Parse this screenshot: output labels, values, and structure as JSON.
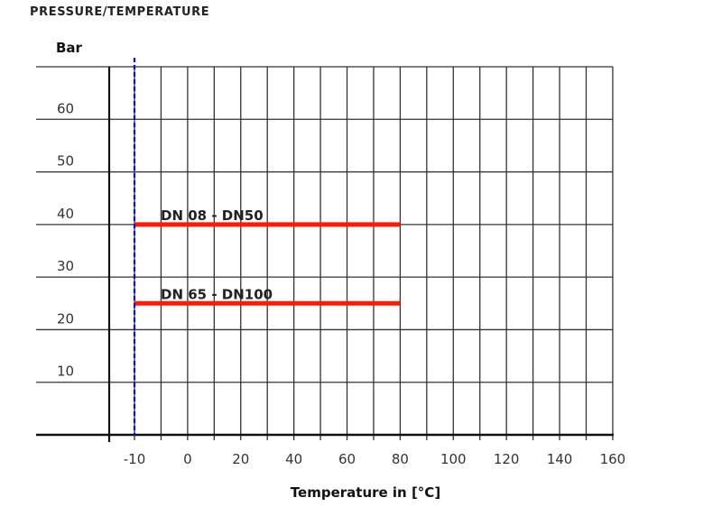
{
  "chart_data": {
    "type": "line",
    "title": "PRESSURE/TEMPERATURE",
    "ylabel": "Bar",
    "xlabel": "Temperature in [°C]",
    "ylim": [
      0,
      70
    ],
    "yticks": [
      10,
      20,
      30,
      40,
      50,
      60
    ],
    "xticks": [
      -10,
      0,
      20,
      40,
      60,
      80,
      100,
      120,
      140,
      160
    ],
    "grid": true,
    "reference_line": {
      "x": -10,
      "color": "#0000ff",
      "style": "dashed"
    },
    "series": [
      {
        "name": "DN 08 - DN50",
        "x": [
          -10,
          80
        ],
        "y": [
          40,
          40
        ],
        "color": "#ff1a00"
      },
      {
        "name": "DN 65 - DN100",
        "x": [
          -10,
          80
        ],
        "y": [
          25,
          25
        ],
        "color": "#ff1a00"
      }
    ]
  }
}
